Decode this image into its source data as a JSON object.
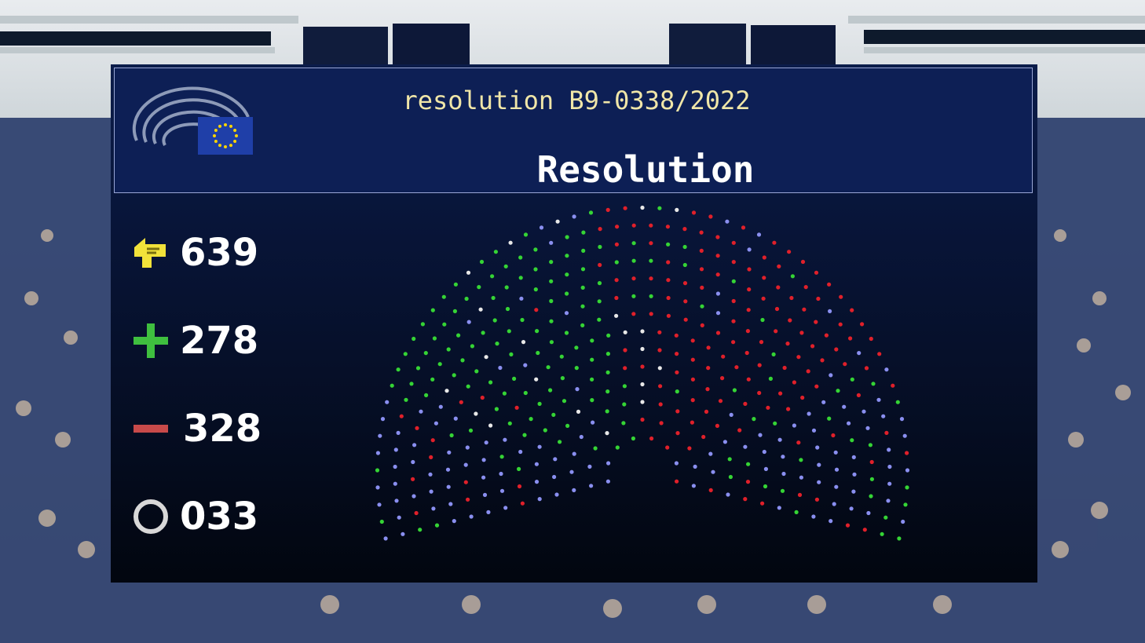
{
  "screen": {
    "reference": "resolution B9-0338/2022",
    "title": "Resolution"
  },
  "counts": [
    {
      "key": "total",
      "icon": "voting-hand-icon",
      "value": "639",
      "color": "#f2e23a"
    },
    {
      "key": "for",
      "icon": "plus-icon",
      "value": "278",
      "color": "#3fbf3f"
    },
    {
      "key": "against",
      "icon": "minus-icon",
      "value": "328",
      "color": "#c84a4a"
    },
    {
      "key": "abstain",
      "icon": "circle-icon",
      "value": "033",
      "color": "#d8d8d8"
    }
  ],
  "colors": {
    "for": "#35d435",
    "against": "#e0202a",
    "abstain": "#e8e8e8",
    "absent": "#8a8ff0",
    "eu_blue": "#1f3fa8",
    "eu_star": "#ffd500"
  }
}
